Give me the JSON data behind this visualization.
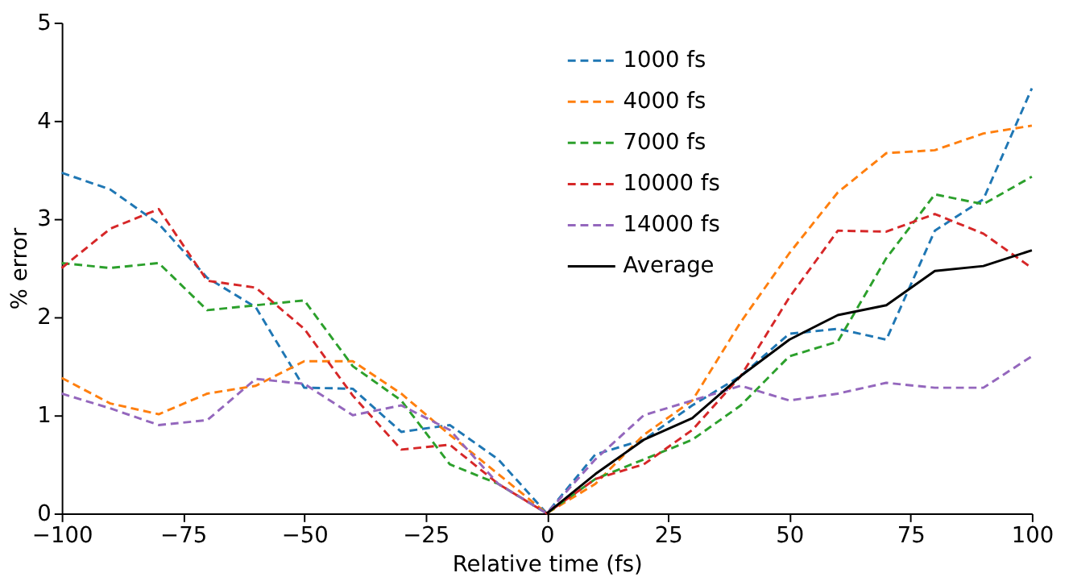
{
  "chart_data": {
    "type": "line",
    "xlabel": "Relative time (fs)",
    "ylabel": "% error",
    "x": [
      -100,
      -90,
      -80,
      -70,
      -60,
      -50,
      -40,
      -30,
      -20,
      -10,
      0,
      10,
      20,
      30,
      40,
      50,
      60,
      70,
      80,
      90,
      100
    ],
    "series": [
      {
        "name": "1000 fs",
        "color": "#1f77b4",
        "line_style": "dashed",
        "values": [
          3.47,
          3.3,
          2.95,
          2.4,
          2.1,
          1.28,
          1.27,
          0.83,
          0.9,
          0.55,
          0,
          0.6,
          0.75,
          1.1,
          1.4,
          1.83,
          1.88,
          1.77,
          2.88,
          3.2,
          4.33
        ]
      },
      {
        "name": "4000 fs",
        "color": "#ff7f0e",
        "line_style": "dashed",
        "values": [
          1.38,
          1.12,
          1.01,
          1.22,
          1.3,
          1.55,
          1.55,
          1.22,
          0.8,
          0.4,
          0,
          0.3,
          0.8,
          1.15,
          1.95,
          2.65,
          3.27,
          3.67,
          3.7,
          3.87,
          3.95
        ]
      },
      {
        "name": "7000 fs",
        "color": "#2ca02c",
        "line_style": "dashed",
        "values": [
          2.55,
          2.5,
          2.55,
          2.07,
          2.12,
          2.17,
          1.5,
          1.15,
          0.5,
          0.3,
          0,
          0.35,
          0.55,
          0.75,
          1.1,
          1.6,
          1.75,
          2.6,
          3.25,
          3.15,
          3.43
        ]
      },
      {
        "name": "10000 fs",
        "color": "#d62728",
        "line_style": "dashed",
        "values": [
          2.5,
          2.9,
          3.1,
          2.37,
          2.3,
          1.88,
          1.2,
          0.65,
          0.7,
          0.3,
          0,
          0.35,
          0.5,
          0.85,
          1.4,
          2.2,
          2.88,
          2.87,
          3.05,
          2.85,
          2.5
        ]
      },
      {
        "name": "14000 fs",
        "color": "#9467bd",
        "line_style": "dashed",
        "values": [
          1.22,
          1.07,
          0.9,
          0.95,
          1.37,
          1.32,
          1.0,
          1.1,
          0.85,
          0.3,
          0,
          0.55,
          1.0,
          1.15,
          1.3,
          1.15,
          1.22,
          1.33,
          1.28,
          1.28,
          1.6
        ]
      },
      {
        "name": "Average",
        "color": "#000000",
        "line_style": "solid",
        "x": [
          0,
          10,
          20,
          30,
          40,
          50,
          60,
          70,
          80,
          90,
          100
        ],
        "values": [
          0,
          0.4,
          0.75,
          0.97,
          1.4,
          1.77,
          2.02,
          2.12,
          2.47,
          2.52,
          2.68
        ]
      }
    ],
    "xlim": [
      -100,
      100
    ],
    "xticks": [
      -100,
      -75,
      -50,
      -25,
      0,
      25,
      50,
      75,
      100
    ],
    "ylim": [
      0,
      5
    ],
    "yticks": [
      0,
      1,
      2,
      3,
      4,
      5
    ],
    "grid": false,
    "legend": "top"
  }
}
